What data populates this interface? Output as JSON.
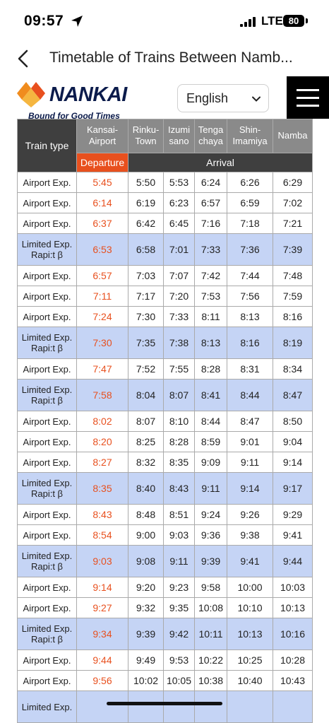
{
  "status": {
    "time": "09:57",
    "network": "LTE",
    "battery": "80"
  },
  "nav": {
    "title": "Timetable of Trains Between Namb..."
  },
  "header": {
    "logo_text": "NANKAI",
    "logo_tagline": "Bound for Good Times",
    "language": "English"
  },
  "table": {
    "type_header": "Train type",
    "departure_label": "Departure",
    "arrival_label": "Arrival",
    "stations": [
      {
        "l1": "Kansai-",
        "l2": "Airport"
      },
      {
        "l1": "Rinku-",
        "l2": "Town"
      },
      {
        "l1": "Izumi",
        "l2": "sano"
      },
      {
        "l1": "Tenga",
        "l2": "chaya"
      },
      {
        "l1": "Shin-",
        "l2": "Imamiya"
      },
      {
        "l1": "Namba",
        "l2": ""
      }
    ],
    "rows": [
      {
        "l1": "Airport Exp.",
        "l2": "",
        "rapit": false,
        "times": [
          "5:45",
          "5:50",
          "5:53",
          "6:24",
          "6:26",
          "6:29"
        ]
      },
      {
        "l1": "Airport Exp.",
        "l2": "",
        "rapit": false,
        "times": [
          "6:14",
          "6:19",
          "6:23",
          "6:57",
          "6:59",
          "7:02"
        ]
      },
      {
        "l1": "Airport Exp.",
        "l2": "",
        "rapit": false,
        "times": [
          "6:37",
          "6:42",
          "6:45",
          "7:16",
          "7:18",
          "7:21"
        ]
      },
      {
        "l1": "Limited Exp.",
        "l2": "Rapi:t β",
        "rapit": true,
        "times": [
          "6:53",
          "6:58",
          "7:01",
          "7:33",
          "7:36",
          "7:39"
        ]
      },
      {
        "l1": "Airport Exp.",
        "l2": "",
        "rapit": false,
        "times": [
          "6:57",
          "7:03",
          "7:07",
          "7:42",
          "7:44",
          "7:48"
        ]
      },
      {
        "l1": "Airport Exp.",
        "l2": "",
        "rapit": false,
        "times": [
          "7:11",
          "7:17",
          "7:20",
          "7:53",
          "7:56",
          "7:59"
        ]
      },
      {
        "l1": "Airport Exp.",
        "l2": "",
        "rapit": false,
        "times": [
          "7:24",
          "7:30",
          "7:33",
          "8:11",
          "8:13",
          "8:16"
        ]
      },
      {
        "l1": "Limited Exp.",
        "l2": "Rapi:t β",
        "rapit": true,
        "times": [
          "7:30",
          "7:35",
          "7:38",
          "8:13",
          "8:16",
          "8:19"
        ]
      },
      {
        "l1": "Airport Exp.",
        "l2": "",
        "rapit": false,
        "times": [
          "7:47",
          "7:52",
          "7:55",
          "8:28",
          "8:31",
          "8:34"
        ]
      },
      {
        "l1": "Limited Exp.",
        "l2": "Rapi:t β",
        "rapit": true,
        "times": [
          "7:58",
          "8:04",
          "8:07",
          "8:41",
          "8:44",
          "8:47"
        ]
      },
      {
        "l1": "Airport Exp.",
        "l2": "",
        "rapit": false,
        "times": [
          "8:02",
          "8:07",
          "8:10",
          "8:44",
          "8:47",
          "8:50"
        ]
      },
      {
        "l1": "Airport Exp.",
        "l2": "",
        "rapit": false,
        "times": [
          "8:20",
          "8:25",
          "8:28",
          "8:59",
          "9:01",
          "9:04"
        ]
      },
      {
        "l1": "Airport Exp.",
        "l2": "",
        "rapit": false,
        "times": [
          "8:27",
          "8:32",
          "8:35",
          "9:09",
          "9:11",
          "9:14"
        ]
      },
      {
        "l1": "Limited Exp.",
        "l2": "Rapi:t β",
        "rapit": true,
        "times": [
          "8:35",
          "8:40",
          "8:43",
          "9:11",
          "9:14",
          "9:17"
        ]
      },
      {
        "l1": "Airport Exp.",
        "l2": "",
        "rapit": false,
        "times": [
          "8:43",
          "8:48",
          "8:51",
          "9:24",
          "9:26",
          "9:29"
        ]
      },
      {
        "l1": "Airport Exp.",
        "l2": "",
        "rapit": false,
        "times": [
          "8:54",
          "9:00",
          "9:03",
          "9:36",
          "9:38",
          "9:41"
        ]
      },
      {
        "l1": "Limited Exp.",
        "l2": "Rapi:t β",
        "rapit": true,
        "times": [
          "9:03",
          "9:08",
          "9:11",
          "9:39",
          "9:41",
          "9:44"
        ]
      },
      {
        "l1": "Airport Exp.",
        "l2": "",
        "rapit": false,
        "times": [
          "9:14",
          "9:20",
          "9:23",
          "9:58",
          "10:00",
          "10:03"
        ]
      },
      {
        "l1": "Airport Exp.",
        "l2": "",
        "rapit": false,
        "times": [
          "9:27",
          "9:32",
          "9:35",
          "10:08",
          "10:10",
          "10:13"
        ]
      },
      {
        "l1": "Limited Exp.",
        "l2": "Rapi:t β",
        "rapit": true,
        "times": [
          "9:34",
          "9:39",
          "9:42",
          "10:11",
          "10:13",
          "10:16"
        ]
      },
      {
        "l1": "Airport Exp.",
        "l2": "",
        "rapit": false,
        "times": [
          "9:44",
          "9:49",
          "9:53",
          "10:22",
          "10:25",
          "10:28"
        ]
      },
      {
        "l1": "Airport Exp.",
        "l2": "",
        "rapit": false,
        "times": [
          "9:56",
          "10:02",
          "10:05",
          "10:38",
          "10:40",
          "10:43"
        ]
      },
      {
        "l1": "Limited Exp.",
        "l2": "",
        "rapit": true,
        "times": [
          "",
          "",
          "",
          "",
          "",
          ""
        ]
      }
    ]
  },
  "colors": {
    "departure": "#e8501e",
    "rapit_bg": "#c5d4f5",
    "header_dark": "#3f3f3f",
    "header_grey": "#8a8a8a",
    "brand_navy": "#0b1b4b",
    "brand_orange": "#f08c1e"
  },
  "icons": {
    "back": "chevron-left-icon",
    "location": "location-arrow-icon",
    "signal": "signal-bars-icon",
    "select": "chevron-down-icon",
    "menu": "hamburger-menu-icon"
  }
}
